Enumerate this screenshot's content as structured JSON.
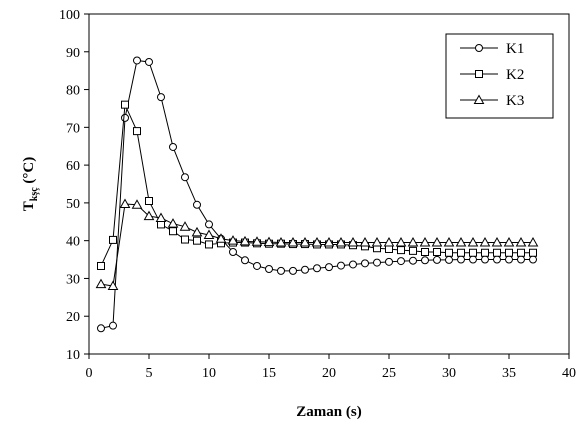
{
  "chart_data": {
    "type": "line",
    "title": "",
    "xlabel": "Zaman (s)",
    "ylabel": {
      "main": "T",
      "sub": "kşç",
      "unit": " (°C)"
    },
    "xlim": [
      0,
      40
    ],
    "ylim": [
      10,
      100
    ],
    "xticks": [
      0,
      5,
      10,
      15,
      20,
      25,
      30,
      35,
      40
    ],
    "yticks": [
      10,
      20,
      30,
      40,
      50,
      60,
      70,
      80,
      90,
      100
    ],
    "grid": false,
    "legend_position": "top-right",
    "x": [
      1,
      2,
      3,
      4,
      5,
      6,
      7,
      8,
      9,
      10,
      11,
      12,
      13,
      14,
      15,
      16,
      17,
      18,
      19,
      20,
      21,
      22,
      23,
      24,
      25,
      26,
      27,
      28,
      29,
      30,
      31,
      32,
      33,
      34,
      35,
      36,
      37
    ],
    "series": [
      {
        "name": "K1",
        "marker": "circle",
        "values": [
          16.8,
          17.5,
          72.5,
          87.7,
          87.3,
          78,
          64.8,
          56.8,
          49.5,
          44.3,
          40.5,
          37,
          34.8,
          33.3,
          32.5,
          32,
          32,
          32.3,
          32.7,
          33,
          33.4,
          33.7,
          34,
          34.2,
          34.4,
          34.6,
          34.7,
          34.8,
          34.9,
          34.9,
          35,
          35,
          35,
          35,
          35,
          35,
          35
        ]
      },
      {
        "name": "K2",
        "marker": "square",
        "values": [
          33.3,
          40.2,
          76,
          69,
          50.5,
          44.3,
          42.5,
          40.3,
          40,
          39,
          39.3,
          39.5,
          39.5,
          39.3,
          39.2,
          39.2,
          39.1,
          39.1,
          39,
          39,
          39,
          38.8,
          38.5,
          38,
          37.8,
          37.5,
          37.3,
          37,
          37,
          36.8,
          36.8,
          36.8,
          36.8,
          36.8,
          36.8,
          36.8,
          36.8
        ]
      },
      {
        "name": "K3",
        "marker": "triangle",
        "values": [
          28.5,
          28,
          49.7,
          49.5,
          46.5,
          46,
          44.5,
          43.7,
          42.2,
          41.5,
          40.5,
          40,
          39.8,
          39.7,
          39.6,
          39.5,
          39.5,
          39.5,
          39.5,
          39.5,
          39.5,
          39.5,
          39.5,
          39.5,
          39.5,
          39.5,
          39.5,
          39.5,
          39.5,
          39.5,
          39.5,
          39.5,
          39.5,
          39.5,
          39.5,
          39.5,
          39.5
        ]
      }
    ]
  }
}
